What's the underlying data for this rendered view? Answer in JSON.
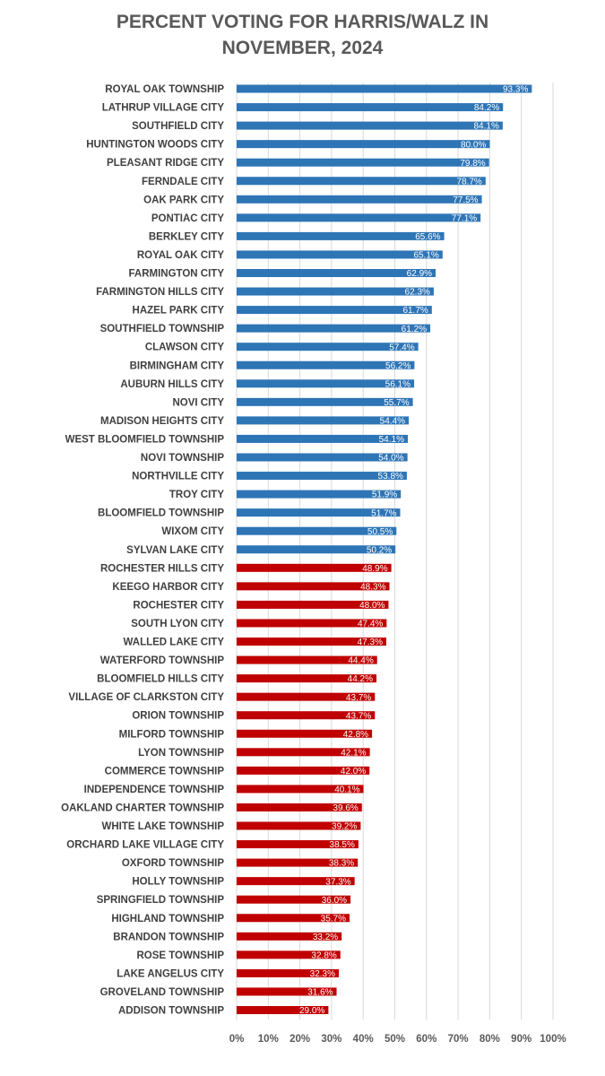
{
  "chart_data": {
    "type": "bar",
    "orientation": "horizontal",
    "title": [
      "PERCENT VOTING FOR HARRIS/WALZ IN",
      "NOVEMBER, 2024"
    ],
    "xlabel": "",
    "ylabel": "",
    "xlim": [
      0,
      100
    ],
    "grid": true,
    "legend": "none",
    "colors": {
      "above_50": "#2e75b6",
      "below_50": "#c00000",
      "grid": "#d9d9d9",
      "text": "#404040"
    },
    "ticks": [
      "0%",
      "10%",
      "20%",
      "30%",
      "40%",
      "50%",
      "60%",
      "70%",
      "80%",
      "90%",
      "100%"
    ],
    "categories": [
      "ROYAL OAK TOWNSHIP",
      "LATHRUP VILLAGE CITY",
      "SOUTHFIELD CITY",
      "HUNTINGTON WOODS CITY",
      "PLEASANT RIDGE CITY",
      "FERNDALE CITY",
      "OAK PARK CITY",
      "PONTIAC CITY",
      "BERKLEY CITY",
      "ROYAL OAK CITY",
      "FARMINGTON CITY",
      "FARMINGTON HILLS CITY",
      "HAZEL PARK CITY",
      "SOUTHFIELD TOWNSHIP",
      "CLAWSON CITY",
      "BIRMINGHAM CITY",
      "AUBURN HILLS CITY",
      "NOVI CITY",
      "MADISON HEIGHTS CITY",
      "WEST BLOOMFIELD TOWNSHIP",
      "NOVI TOWNSHIP",
      "NORTHVILLE CITY",
      "TROY CITY",
      "BLOOMFIELD TOWNSHIP",
      "WIXOM CITY",
      "SYLVAN LAKE CITY",
      "ROCHESTER HILLS CITY",
      "KEEGO HARBOR CITY",
      "ROCHESTER CITY",
      "SOUTH LYON CITY",
      "WALLED LAKE CITY",
      "WATERFORD TOWNSHIP",
      "BLOOMFIELD HILLS CITY",
      "VILLAGE OF CLARKSTON CITY",
      "ORION TOWNSHIP",
      "MILFORD TOWNSHIP",
      "LYON TOWNSHIP",
      "COMMERCE TOWNSHIP",
      "INDEPENDENCE TOWNSHIP",
      "OAKLAND CHARTER TOWNSHIP",
      "WHITE LAKE TOWNSHIP",
      "ORCHARD LAKE VILLAGE CITY",
      "OXFORD TOWNSHIP",
      "HOLLY TOWNSHIP",
      "SPRINGFIELD TOWNSHIP",
      "HIGHLAND TOWNSHIP",
      "BRANDON TOWNSHIP",
      "ROSE TOWNSHIP",
      "LAKE ANGELUS CITY",
      "GROVELAND TOWNSHIP",
      "ADDISON TOWNSHIP"
    ],
    "values": [
      93.3,
      84.2,
      84.1,
      80.0,
      79.8,
      78.7,
      77.5,
      77.1,
      65.6,
      65.1,
      62.9,
      62.3,
      61.7,
      61.2,
      57.4,
      56.2,
      56.1,
      55.7,
      54.4,
      54.1,
      54.0,
      53.8,
      51.9,
      51.7,
      50.5,
      50.2,
      48.9,
      48.3,
      48.0,
      47.4,
      47.3,
      44.4,
      44.2,
      43.7,
      43.7,
      42.8,
      42.1,
      42.0,
      40.1,
      39.6,
      39.2,
      38.5,
      38.3,
      37.3,
      36.0,
      35.7,
      33.2,
      32.8,
      32.3,
      31.6,
      29.0
    ],
    "data_labels": [
      "93.3%",
      "84.2%",
      "84.1%",
      "80.0%",
      "79.8%",
      "78.7%",
      "77.5%",
      "77.1%",
      "65.6%",
      "65.1%",
      "62.9%",
      "62.3%",
      "61.7%",
      "61.2%",
      "57.4%",
      "56.2%",
      "56.1%",
      "55.7%",
      "54.4%",
      "54.1%",
      "54.0%",
      "53.8%",
      "51.9%",
      "51.7%",
      "50.5%",
      "50.2%",
      "48.9%",
      "48.3%",
      "48.0%",
      "47.4%",
      "47.3%",
      "44.4%",
      "44.2%",
      "43.7%",
      "43.7%",
      "42.8%",
      "42.1%",
      "42.0%",
      "40.1%",
      "39.6%",
      "39.2%",
      "38.5%",
      "38.3%",
      "37.3%",
      "36.0%",
      "35.7%",
      "33.2%",
      "32.8%",
      "32.3%",
      "31.6%",
      "29.0%"
    ]
  }
}
